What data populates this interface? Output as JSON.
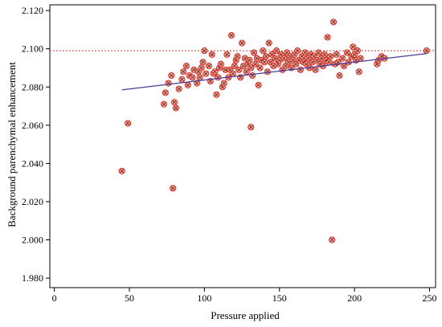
{
  "chart_data": {
    "type": "scatter",
    "xlabel": "Pressure applied",
    "ylabel": "Background parenchymal enhancement",
    "xlim": [
      -3,
      254
    ],
    "ylim": [
      1.975,
      2.123
    ],
    "x_ticks": [
      0,
      50,
      100,
      150,
      200,
      250
    ],
    "y_ticks": [
      1.98,
      2.0,
      2.02,
      2.04,
      2.06,
      2.08,
      2.1,
      2.12
    ],
    "x_tick_labels": [
      "0",
      "50",
      "100",
      "150",
      "200",
      "250"
    ],
    "y_tick_labels": [
      "1.980",
      "2.000",
      "2.020",
      "2.040",
      "2.060",
      "2.080",
      "2.100",
      "2.120"
    ],
    "grid": false,
    "reference_line": {
      "y": 2.099,
      "style": "dashed",
      "color": "#c04040"
    },
    "regression_line": {
      "x": [
        45,
        248
      ],
      "y": [
        2.0785,
        2.0975
      ],
      "color": "#4a3a9a"
    },
    "marker": {
      "fill": "#f5a19a",
      "stroke": "#d8221a",
      "cross": "#5a2a10"
    },
    "points": [
      [
        45,
        2.036
      ],
      [
        49,
        2.061
      ],
      [
        79,
        2.027
      ],
      [
        131,
        2.059
      ],
      [
        185,
        2.0
      ],
      [
        73,
        2.071
      ],
      [
        74,
        2.077
      ],
      [
        76,
        2.082
      ],
      [
        78,
        2.086
      ],
      [
        80,
        2.072
      ],
      [
        81,
        2.069
      ],
      [
        83,
        2.079
      ],
      [
        85,
        2.084
      ],
      [
        86,
        2.088
      ],
      [
        88,
        2.091
      ],
      [
        89,
        2.081
      ],
      [
        90,
        2.086
      ],
      [
        92,
        2.085
      ],
      [
        93,
        2.089
      ],
      [
        95,
        2.082
      ],
      [
        96,
        2.088
      ],
      [
        97,
        2.085
      ],
      [
        98,
        2.09
      ],
      [
        99,
        2.093
      ],
      [
        100,
        2.099
      ],
      [
        101,
        2.087
      ],
      [
        103,
        2.091
      ],
      [
        104,
        2.083
      ],
      [
        105,
        2.097
      ],
      [
        106,
        2.087
      ],
      [
        107,
        2.088
      ],
      [
        108,
        2.076
      ],
      [
        109,
        2.085
      ],
      [
        110,
        2.09
      ],
      [
        111,
        2.092
      ],
      [
        112,
        2.08
      ],
      [
        113,
        2.082
      ],
      [
        114,
        2.089
      ],
      [
        115,
        2.097
      ],
      [
        116,
        2.085
      ],
      [
        117,
        2.089
      ],
      [
        118,
        2.107
      ],
      [
        119,
        2.087
      ],
      [
        120,
        2.091
      ],
      [
        121,
        2.094
      ],
      [
        122,
        2.096
      ],
      [
        123,
        2.089
      ],
      [
        124,
        2.085
      ],
      [
        125,
        2.103
      ],
      [
        126,
        2.091
      ],
      [
        127,
        2.095
      ],
      [
        128,
        2.088
      ],
      [
        129,
        2.092
      ],
      [
        130,
        2.094
      ],
      [
        131,
        2.09
      ],
      [
        132,
        2.086
      ],
      [
        133,
        2.098
      ],
      [
        134,
        2.092
      ],
      [
        135,
        2.095
      ],
      [
        136,
        2.081
      ],
      [
        137,
        2.09
      ],
      [
        138,
        2.094
      ],
      [
        139,
        2.099
      ],
      [
        140,
        2.093
      ],
      [
        141,
        2.096
      ],
      [
        142,
        2.088
      ],
      [
        143,
        2.103
      ],
      [
        144,
        2.093
      ],
      [
        145,
        2.097
      ],
      [
        146,
        2.091
      ],
      [
        147,
        2.095
      ],
      [
        148,
        2.099
      ],
      [
        149,
        2.092
      ],
      [
        150,
        2.094
      ],
      [
        151,
        2.097
      ],
      [
        152,
        2.089
      ],
      [
        153,
        2.095
      ],
      [
        154,
        2.091
      ],
      [
        155,
        2.098
      ],
      [
        156,
        2.093
      ],
      [
        157,
        2.096
      ],
      [
        158,
        2.09
      ],
      [
        159,
        2.094
      ],
      [
        160,
        2.097
      ],
      [
        161,
        2.092
      ],
      [
        162,
        2.099
      ],
      [
        163,
        2.094
      ],
      [
        164,
        2.089
      ],
      [
        165,
        2.096
      ],
      [
        166,
        2.093
      ],
      [
        167,
        2.098
      ],
      [
        168,
        2.092
      ],
      [
        169,
        2.095
      ],
      [
        170,
        2.09
      ],
      [
        171,
        2.097
      ],
      [
        172,
        2.093
      ],
      [
        173,
        2.096
      ],
      [
        174,
        2.089
      ],
      [
        175,
        2.094
      ],
      [
        176,
        2.098
      ],
      [
        177,
        2.092
      ],
      [
        178,
        2.095
      ],
      [
        179,
        2.091
      ],
      [
        180,
        2.097
      ],
      [
        181,
        2.094
      ],
      [
        182,
        2.106
      ],
      [
        183,
        2.093
      ],
      [
        184,
        2.096
      ],
      [
        186,
        2.114
      ],
      [
        187,
        2.092
      ],
      [
        188,
        2.097
      ],
      [
        189,
        2.093
      ],
      [
        190,
        2.086
      ],
      [
        192,
        2.095
      ],
      [
        193,
        2.091
      ],
      [
        195,
        2.098
      ],
      [
        196,
        2.093
      ],
      [
        198,
        2.096
      ],
      [
        199,
        2.101
      ],
      [
        200,
        2.097
      ],
      [
        201,
        2.094
      ],
      [
        202,
        2.099
      ],
      [
        203,
        2.088
      ],
      [
        204,
        2.095
      ],
      [
        215,
        2.092
      ],
      [
        216,
        2.094
      ],
      [
        218,
        2.096
      ],
      [
        220,
        2.095
      ],
      [
        248,
        2.099
      ]
    ]
  }
}
